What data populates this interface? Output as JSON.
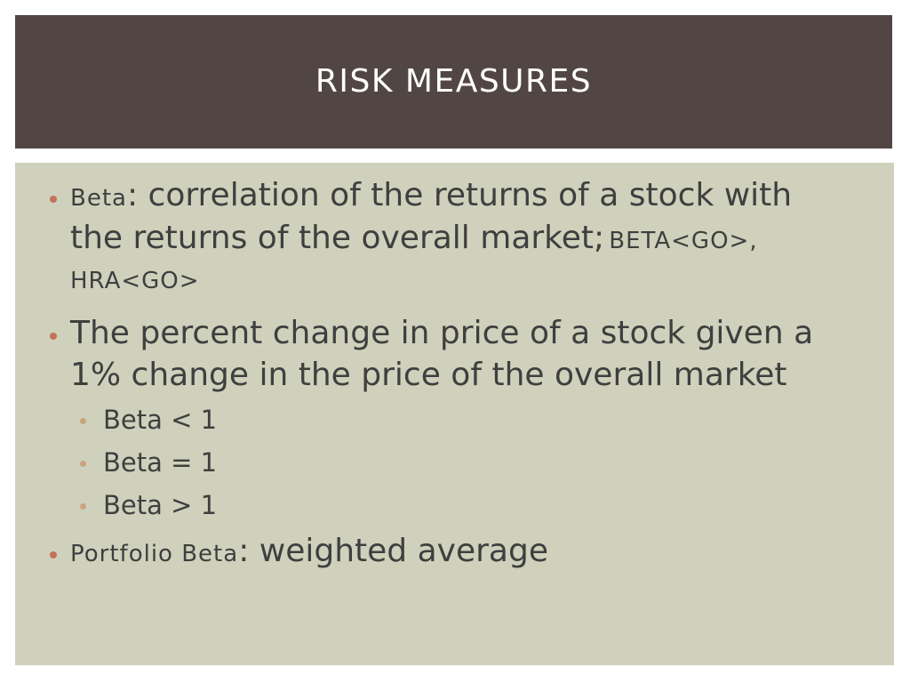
{
  "slide": {
    "title": "RISK MEASURES",
    "bullets": {
      "b1": {
        "term": "Beta",
        "sep": ":",
        "text_l1": " correlation of the returns of a stock with",
        "text_l2": "the returns of the overall market;",
        "code_1": "BETA<GO>,",
        "code_2": "HRA<GO>"
      },
      "b2": {
        "text_l1": "The percent change in price of a stock given a",
        "text_l2": "1% change in the price of the overall market",
        "subs": [
          "Beta < 1",
          "Beta = 1",
          "Beta > 1"
        ]
      },
      "b3": {
        "term": "Portfolio Beta",
        "sep": ":",
        "text": " weighted average"
      }
    },
    "colors": {
      "title_bg": "#524644",
      "content_bg": "#cfd1bc",
      "bullet_dot": "#c4725b",
      "sub_bullet_dot": "#c9a57c"
    }
  }
}
